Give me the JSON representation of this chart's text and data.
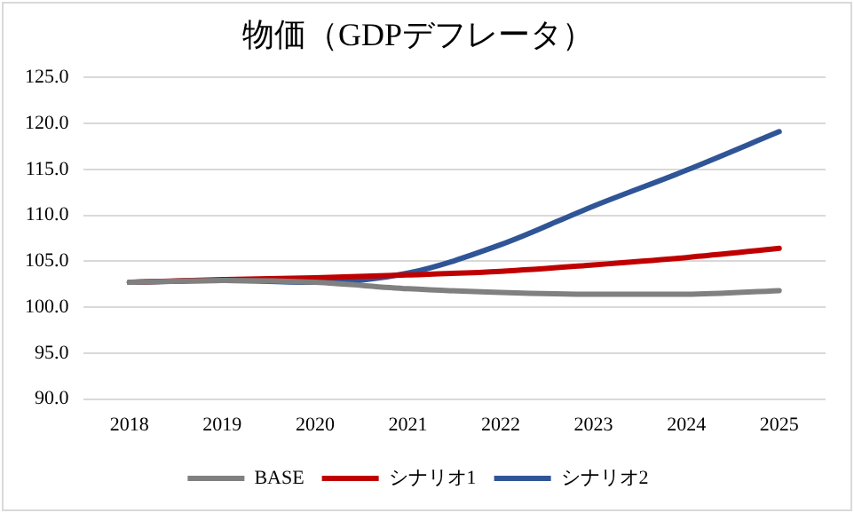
{
  "chart_data": {
    "type": "line",
    "title": "物価（GDPデフレータ）",
    "categories": [
      "2018",
      "2019",
      "2020",
      "2021",
      "2022",
      "2023",
      "2024",
      "2025"
    ],
    "series": [
      {
        "name": "BASE",
        "color": "#808080",
        "values": [
          102.7,
          102.9,
          102.7,
          102.0,
          101.6,
          101.4,
          101.4,
          101.8
        ]
      },
      {
        "name": "シナリオ1",
        "color": "#c00000",
        "values": [
          102.7,
          103.0,
          103.2,
          103.5,
          103.9,
          104.6,
          105.4,
          106.4
        ]
      },
      {
        "name": "シナリオ2",
        "color": "#2f5597",
        "values": [
          102.7,
          102.9,
          102.7,
          103.7,
          106.8,
          111.0,
          114.9,
          119.1
        ]
      }
    ],
    "ylim": [
      90,
      125
    ],
    "yticks": [
      {
        "value": 90,
        "label": "90.0"
      },
      {
        "value": 95,
        "label": "95.0"
      },
      {
        "value": 100,
        "label": "100.0"
      },
      {
        "value": 105,
        "label": "105.0"
      },
      {
        "value": 110,
        "label": "110.0"
      },
      {
        "value": 115,
        "label": "115.0"
      },
      {
        "value": 120,
        "label": "120.0"
      },
      {
        "value": 125,
        "label": "125.0"
      }
    ],
    "grid": "y",
    "legend": "bottom",
    "marker": "none",
    "line_style": "solid"
  }
}
